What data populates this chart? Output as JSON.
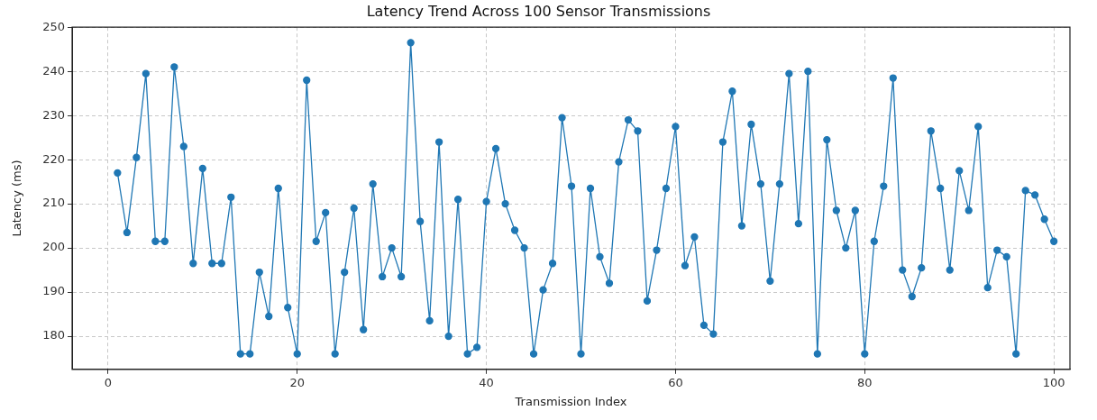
{
  "chart_data": {
    "type": "line",
    "title": "Latency Trend Across 100 Sensor Transmissions",
    "xlabel": "Transmission Index",
    "ylabel": "Latency (ms)",
    "x": [
      1,
      2,
      3,
      4,
      5,
      6,
      7,
      8,
      9,
      10,
      11,
      12,
      13,
      14,
      15,
      16,
      17,
      18,
      19,
      20,
      21,
      22,
      23,
      24,
      25,
      26,
      27,
      28,
      29,
      30,
      31,
      32,
      33,
      34,
      35,
      36,
      37,
      38,
      39,
      40,
      41,
      42,
      43,
      44,
      45,
      46,
      47,
      48,
      49,
      50,
      51,
      52,
      53,
      54,
      55,
      56,
      57,
      58,
      59,
      60,
      61,
      62,
      63,
      64,
      65,
      66,
      67,
      68,
      69,
      70,
      71,
      72,
      73,
      74,
      75,
      76,
      77,
      78,
      79,
      80,
      81,
      82,
      83,
      84,
      85,
      86,
      87,
      88,
      89,
      90,
      91,
      92,
      93,
      94,
      95,
      96,
      97,
      98,
      99,
      100
    ],
    "series": [
      {
        "color": "#1f77b4",
        "values": [
          217,
          203.5,
          220.5,
          239.5,
          201.5,
          201.5,
          241,
          223,
          196.5,
          218,
          196.5,
          196.5,
          211.5,
          176,
          176,
          194.5,
          184.5,
          213.5,
          186.5,
          176,
          238,
          201.5,
          208,
          176,
          194.5,
          209,
          181.5,
          214.5,
          193.5,
          200,
          193.5,
          246.5,
          206,
          183.5,
          224,
          180,
          211,
          176,
          177.5,
          210.5,
          222.5,
          210,
          204,
          200,
          176,
          190.5,
          196.5,
          229.5,
          214,
          176,
          213.5,
          198,
          192,
          219.5,
          229,
          226.5,
          188,
          199.5,
          213.5,
          227.5,
          196,
          202.5,
          182.5,
          180.5,
          224,
          235.5,
          205,
          228,
          214.5,
          192.5,
          214.5,
          239.5,
          205.5,
          240,
          176,
          224.5,
          208.5,
          200,
          208.5,
          176,
          201.5,
          214,
          238.5,
          195,
          189,
          195.5,
          226.5,
          213.5,
          195,
          217.5,
          208.5,
          227.5,
          191,
          199.5,
          198,
          176,
          213,
          212,
          206.5,
          201.5
        ]
      }
    ],
    "xlim": [
      -3.8,
      101.7
    ],
    "ylim": [
      172.5,
      250
    ],
    "xticks": [
      0,
      20,
      40,
      60,
      80,
      100
    ],
    "yticks": [
      180,
      190,
      200,
      210,
      220,
      230,
      240,
      250
    ],
    "grid": true,
    "marker": "circle",
    "line_style": "solid"
  }
}
